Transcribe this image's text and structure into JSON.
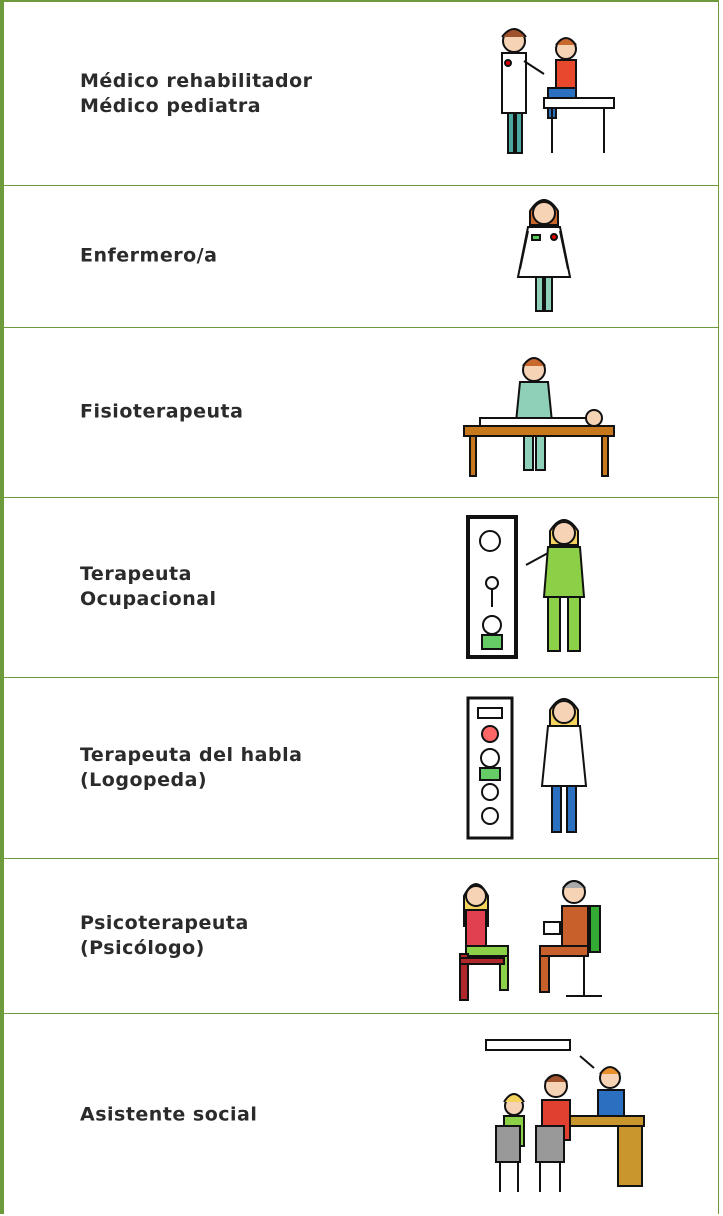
{
  "rows": [
    {
      "lines": [
        "Médico rehabilitador",
        "Médico pediatra"
      ]
    },
    {
      "lines": [
        "Enfermero/a"
      ]
    },
    {
      "lines": [
        "Fisioterapeuta"
      ]
    },
    {
      "lines": [
        "Terapeuta",
        "Ocupacional"
      ]
    },
    {
      "lines": [
        "Terapeuta del habla",
        "(Logopeda)"
      ]
    },
    {
      "lines": [
        "Psicoterapeuta",
        "(Psicólogo)"
      ]
    },
    {
      "lines": [
        "Asistente social"
      ]
    }
  ]
}
